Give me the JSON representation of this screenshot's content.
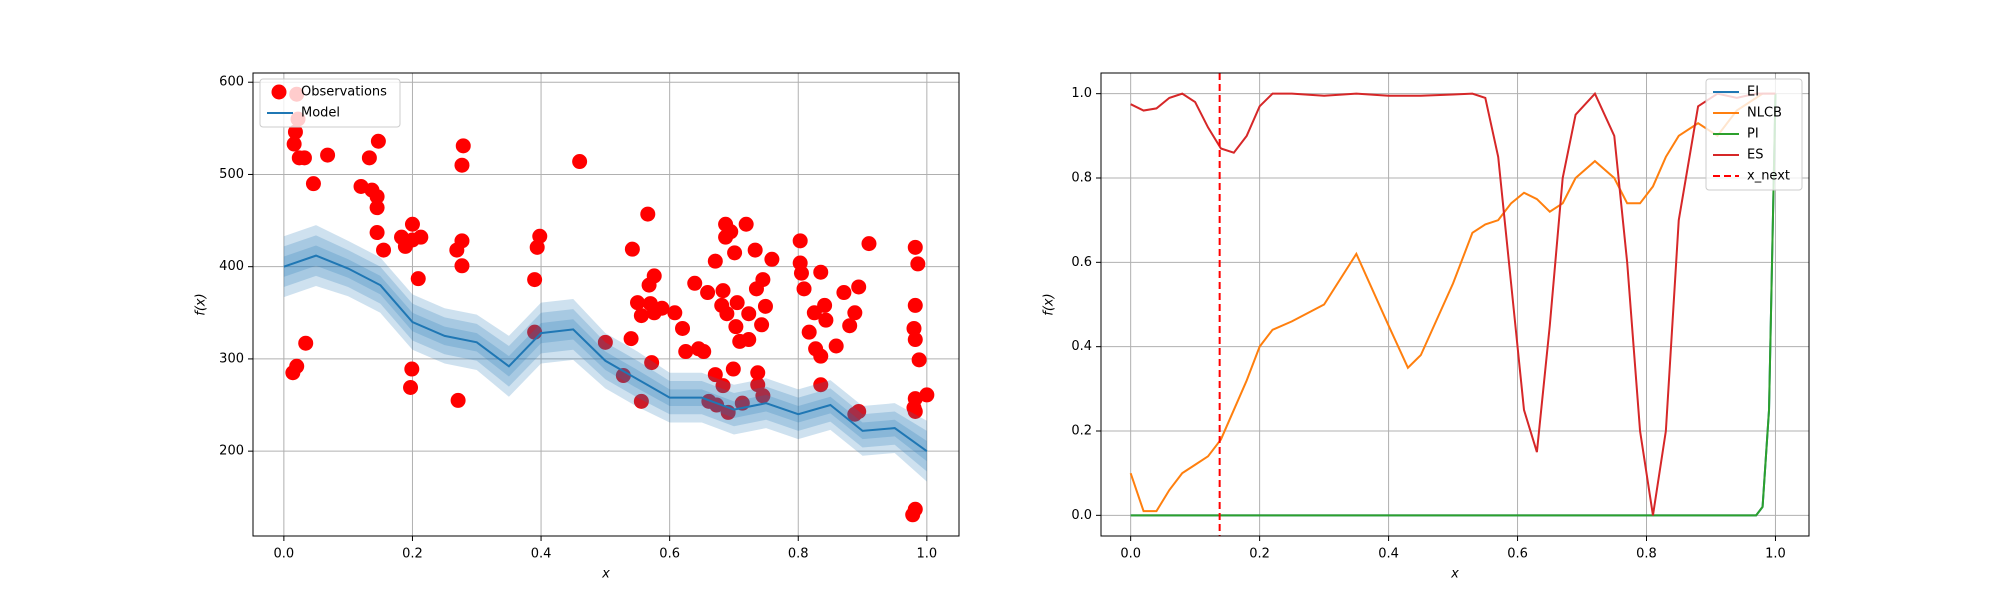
{
  "chart_data": [
    {
      "type": "scatter",
      "xlabel": "x",
      "ylabel": "f(x)",
      "xlim": [
        -0.048,
        1.05
      ],
      "ylim": [
        108,
        610
      ],
      "xticks": [
        {
          "value": 0,
          "label": "0.0"
        },
        {
          "value": 0.2,
          "label": "0.2"
        },
        {
          "value": 0.4,
          "label": "0.4"
        },
        {
          "value": 0.6,
          "label": "0.6"
        },
        {
          "value": 0.8,
          "label": "0.8"
        },
        {
          "value": 1.0,
          "label": "1.0"
        }
      ],
      "yticks": [
        200,
        300,
        400,
        500,
        600
      ],
      "grid": true,
      "legend": "upper left",
      "series": [
        {
          "name": "Observations",
          "type": "scatter",
          "color": "#ff0000",
          "x": [
            0.02,
            0.022,
            0.018,
            0.016,
            0.024,
            0.032,
            0.046,
            0.068,
            0.12,
            0.133,
            0.137,
            0.145,
            0.145,
            0.147,
            0.145,
            0.155,
            0.183,
            0.189,
            0.2,
            0.2,
            0.213,
            0.209,
            0.034,
            0.02,
            0.014,
            0.199,
            0.197,
            0.271,
            0.269,
            0.277,
            0.277,
            0.277,
            0.279,
            0.39,
            0.398,
            0.394,
            0.39,
            0.46,
            0.5,
            0.528,
            0.54,
            0.542,
            0.55,
            0.556,
            0.556,
            0.566,
            0.568,
            0.572,
            0.576,
            0.57,
            0.576,
            0.588,
            0.608,
            0.62,
            0.625,
            0.639,
            0.645,
            0.653,
            0.659,
            0.661,
            0.671,
            0.671,
            0.673,
            0.681,
            0.683,
            0.683,
            0.687,
            0.687,
            0.689,
            0.691,
            0.695,
            0.699,
            0.701,
            0.703,
            0.705,
            0.709,
            0.713,
            0.719,
            0.723,
            0.733,
            0.735,
            0.737,
            0.737,
            0.743,
            0.745,
            0.745,
            0.749,
            0.759,
            0.723,
            0.803,
            0.803,
            0.805,
            0.809,
            0.817,
            0.825,
            0.827,
            0.835,
            0.835,
            0.841,
            0.843,
            0.859,
            0.871,
            0.88,
            0.888,
            0.888,
            0.894,
            0.91,
            0.982,
            0.986,
            0.982,
            0.98,
            0.982,
            0.988,
            0.982,
            0.98,
            0.982,
            1.0,
            0.982,
            0.978,
            0.894,
            0.835
          ],
          "values": [
            587,
            560,
            546,
            533,
            518,
            518,
            490,
            521,
            487,
            518,
            483,
            476,
            464,
            536,
            437,
            418,
            432,
            422,
            446,
            429,
            432,
            387,
            317,
            292,
            285,
            289,
            269,
            255,
            418,
            428,
            401,
            510,
            531,
            386,
            433,
            421,
            329,
            514,
            318,
            282,
            322,
            419,
            361,
            347,
            254,
            457,
            380,
            296,
            390,
            360,
            350,
            355,
            350,
            333,
            308,
            382,
            311,
            308,
            372,
            254,
            283,
            406,
            250,
            358,
            374,
            271,
            446,
            432,
            349,
            242,
            438,
            289,
            415,
            335,
            361,
            319,
            252,
            446,
            349,
            418,
            376,
            285,
            272,
            337,
            386,
            260,
            357,
            408,
            321,
            428,
            404,
            393,
            376,
            329,
            350,
            311,
            394,
            272,
            358,
            342,
            314,
            372,
            336,
            350,
            240,
            378,
            425,
            421,
            403,
            358,
            333,
            321,
            299,
            257,
            247,
            243,
            261,
            137,
            131,
            243,
            303
          ]
        },
        {
          "name": "Model",
          "type": "line",
          "color": "#1f77b4",
          "x": [
            0,
            0.05,
            0.1,
            0.15,
            0.2,
            0.25,
            0.3,
            0.35,
            0.4,
            0.45,
            0.5,
            0.55,
            0.6,
            0.65,
            0.7,
            0.75,
            0.8,
            0.85,
            0.9,
            0.95,
            1.0
          ],
          "values": [
            400,
            412,
            398,
            380,
            340,
            325,
            318,
            292,
            328,
            332,
            298,
            278,
            258,
            258,
            245,
            252,
            240,
            250,
            222,
            225,
            200
          ],
          "bands": [
            {
              "lower": [
                367,
                379,
                368,
                350,
                310,
                295,
                288,
                259,
                295,
                299,
                268,
                248,
                231,
                231,
                218,
                225,
                213,
                223,
                195,
                198,
                167
              ],
              "upper": [
                433,
                445,
                428,
                410,
                370,
                355,
                348,
                325,
                361,
                365,
                328,
                308,
                285,
                285,
                272,
                279,
                267,
                277,
                249,
                252,
                233
              ]
            },
            {
              "lower": [
                378,
                390,
                378,
                360,
                320,
                305,
                298,
                270,
                306,
                310,
                278,
                258,
                240,
                240,
                227,
                234,
                222,
                232,
                204,
                207,
                178
              ],
              "upper": [
                422,
                434,
                418,
                400,
                360,
                345,
                338,
                314,
                350,
                354,
                318,
                298,
                276,
                276,
                263,
                270,
                258,
                268,
                240,
                243,
                222
              ]
            },
            {
              "lower": [
                389,
                401,
                388,
                370,
                330,
                315,
                308,
                281,
                317,
                321,
                288,
                268,
                249,
                249,
                236,
                243,
                231,
                241,
                213,
                216,
                189
              ],
              "upper": [
                411,
                423,
                408,
                390,
                350,
                335,
                328,
                303,
                339,
                343,
                308,
                288,
                267,
                267,
                254,
                261,
                249,
                259,
                231,
                234,
                211
              ]
            }
          ]
        }
      ]
    },
    {
      "type": "line",
      "xlabel": "x",
      "ylabel": "f(x)",
      "xlim": [
        -0.046,
        1.052
      ],
      "ylim": [
        -0.049,
        1.049
      ],
      "xticks": [
        {
          "value": 0,
          "label": "0.0"
        },
        {
          "value": 0.2,
          "label": "0.2"
        },
        {
          "value": 0.4,
          "label": "0.4"
        },
        {
          "value": 0.6,
          "label": "0.6"
        },
        {
          "value": 0.8,
          "label": "0.8"
        },
        {
          "value": 1.0,
          "label": "1.0"
        }
      ],
      "yticks": [
        {
          "value": 0,
          "label": "0.0"
        },
        {
          "value": 0.2,
          "label": "0.2"
        },
        {
          "value": 0.4,
          "label": "0.4"
        },
        {
          "value": 0.6,
          "label": "0.6"
        },
        {
          "value": 0.8,
          "label": "0.8"
        },
        {
          "value": 1.0,
          "label": "1.0"
        }
      ],
      "grid": true,
      "legend": "upper right",
      "x": [
        0,
        0.02,
        0.04,
        0.06,
        0.08,
        0.1,
        0.12,
        0.14,
        0.16,
        0.18,
        0.2,
        0.22,
        0.25,
        0.3,
        0.35,
        0.4,
        0.43,
        0.45,
        0.5,
        0.53,
        0.55,
        0.57,
        0.59,
        0.61,
        0.63,
        0.65,
        0.67,
        0.69,
        0.72,
        0.75,
        0.77,
        0.79,
        0.81,
        0.83,
        0.85,
        0.88,
        0.91,
        0.94,
        0.97,
        0.98,
        0.99,
        1.0
      ],
      "series": [
        {
          "name": "EI",
          "type": "line",
          "color": "#1f77b4",
          "values": [
            0,
            0,
            0,
            0,
            0,
            0,
            0,
            0,
            0,
            0,
            0,
            0,
            0,
            0,
            0,
            0,
            0,
            0,
            0,
            0,
            0,
            0,
            0,
            0,
            0,
            0,
            0,
            0,
            0,
            0,
            0,
            0,
            0,
            0,
            0,
            0,
            0,
            0,
            0,
            0.02,
            0.25,
            1.0
          ]
        },
        {
          "name": "NLCB",
          "type": "line",
          "color": "#ff7f0e",
          "values": [
            0.1,
            0.01,
            0.01,
            0.06,
            0.1,
            0.12,
            0.14,
            0.18,
            0.25,
            0.32,
            0.4,
            0.44,
            0.46,
            0.5,
            0.62,
            0.45,
            0.35,
            0.38,
            0.55,
            0.67,
            0.69,
            0.7,
            0.74,
            0.765,
            0.75,
            0.72,
            0.74,
            0.8,
            0.84,
            0.8,
            0.74,
            0.74,
            0.78,
            0.85,
            0.9,
            0.93,
            0.9,
            0.96,
            0.99,
            1.0,
            1.0,
            1.0
          ]
        },
        {
          "name": "PI",
          "type": "line",
          "color": "#2ca02c",
          "values": [
            0,
            0,
            0,
            0,
            0,
            0,
            0,
            0,
            0,
            0,
            0,
            0,
            0,
            0,
            0,
            0,
            0,
            0,
            0,
            0,
            0,
            0,
            0,
            0,
            0,
            0,
            0,
            0,
            0,
            0,
            0,
            0,
            0,
            0,
            0,
            0,
            0,
            0,
            0,
            0.02,
            0.25,
            1.0
          ]
        },
        {
          "name": "ES",
          "type": "line",
          "color": "#d62728",
          "values": [
            0.975,
            0.96,
            0.965,
            0.99,
            1.0,
            0.98,
            0.92,
            0.87,
            0.86,
            0.9,
            0.97,
            1.0,
            1.0,
            0.995,
            1.0,
            0.995,
            0.995,
            0.995,
            0.998,
            1.0,
            0.99,
            0.85,
            0.55,
            0.25,
            0.15,
            0.45,
            0.8,
            0.95,
            1.0,
            0.9,
            0.6,
            0.2,
            0,
            0.2,
            0.7,
            0.97,
            1.0,
            0.99,
            1.0,
            1.0,
            1.0,
            1.0
          ]
        },
        {
          "name": "x_next",
          "type": "vline",
          "color": "#ff0000",
          "value": 0.138
        }
      ]
    }
  ]
}
